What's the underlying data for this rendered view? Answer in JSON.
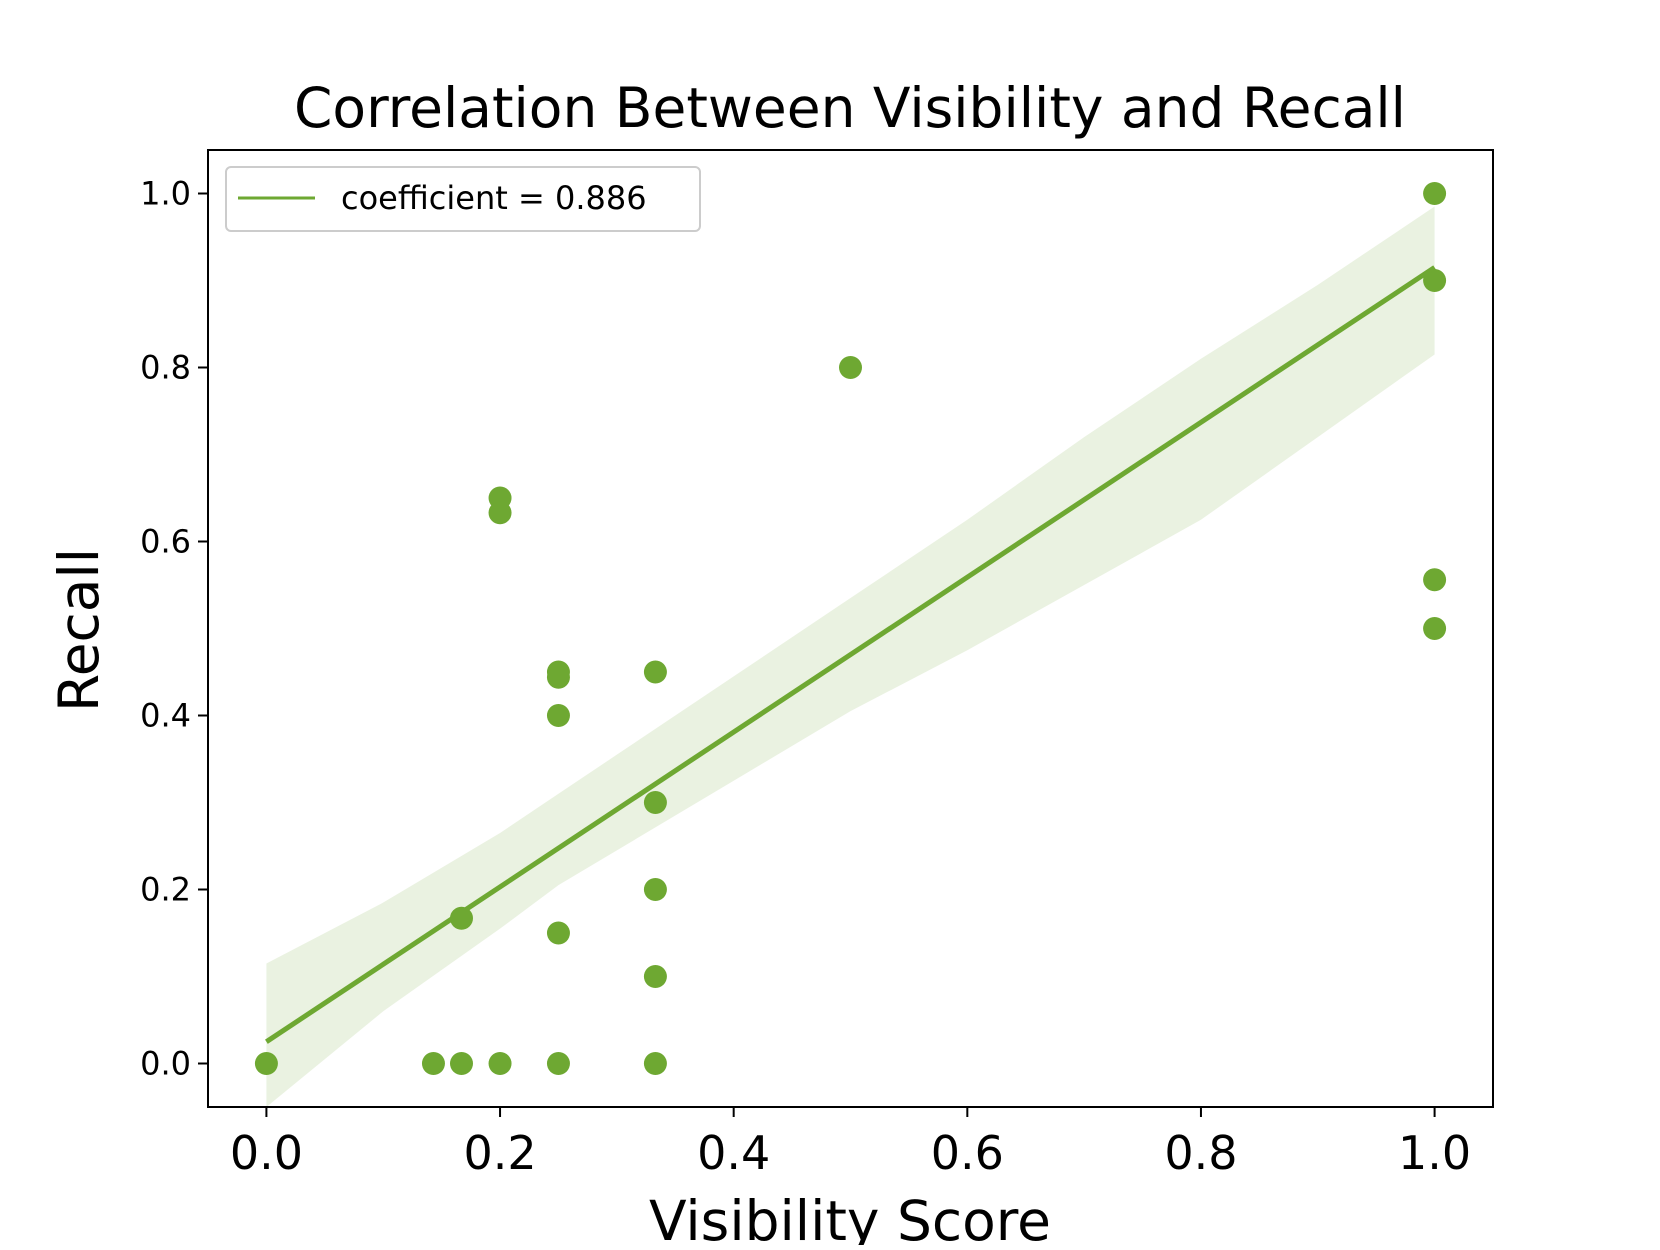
{
  "chart_data": {
    "type": "scatter",
    "title": "Correlation Between Visibility and Recall",
    "xlabel": "Visibility Score",
    "ylabel": "Recall",
    "xlim": [
      -0.05,
      1.05
    ],
    "ylim": [
      -0.05,
      1.05
    ],
    "xticks": [
      0.0,
      0.2,
      0.4,
      0.6,
      0.8,
      1.0
    ],
    "xtick_labels": [
      "0.0",
      "0.2",
      "0.4",
      "0.6",
      "0.8",
      "1.0"
    ],
    "yticks": [
      0.0,
      0.2,
      0.4,
      0.6,
      0.8,
      1.0
    ],
    "ytick_labels": [
      "0.0",
      "0.2",
      "0.4",
      "0.6",
      "0.8",
      "1.0"
    ],
    "grid": false,
    "legend": {
      "position": "top-left",
      "entries": [
        "coefficient = 0.886"
      ]
    },
    "colors": {
      "points": "#6ea832",
      "line": "#6ea832",
      "band": "#e6f0dc"
    },
    "series": [
      {
        "type": "scatter",
        "points": [
          {
            "x": 0.0,
            "y": 0.0
          },
          {
            "x": 0.143,
            "y": 0.0
          },
          {
            "x": 0.167,
            "y": 0.0
          },
          {
            "x": 0.167,
            "y": 0.167
          },
          {
            "x": 0.2,
            "y": 0.0
          },
          {
            "x": 0.2,
            "y": 0.633
          },
          {
            "x": 0.2,
            "y": 0.65
          },
          {
            "x": 0.25,
            "y": 0.0
          },
          {
            "x": 0.25,
            "y": 0.15
          },
          {
            "x": 0.25,
            "y": 0.4
          },
          {
            "x": 0.25,
            "y": 0.444
          },
          {
            "x": 0.25,
            "y": 0.45
          },
          {
            "x": 0.333,
            "y": 0.0
          },
          {
            "x": 0.333,
            "y": 0.1
          },
          {
            "x": 0.333,
            "y": 0.2
          },
          {
            "x": 0.333,
            "y": 0.3
          },
          {
            "x": 0.333,
            "y": 0.45
          },
          {
            "x": 0.5,
            "y": 0.8
          },
          {
            "x": 1.0,
            "y": 0.5
          },
          {
            "x": 1.0,
            "y": 0.556
          },
          {
            "x": 1.0,
            "y": 0.9
          },
          {
            "x": 1.0,
            "y": 1.0
          }
        ]
      },
      {
        "type": "line",
        "points": [
          {
            "x": 0.0,
            "y": 0.025
          },
          {
            "x": 1.0,
            "y": 0.915
          }
        ]
      },
      {
        "type": "band",
        "points": [
          {
            "x": 0.0,
            "lo": -0.05,
            "hi": 0.115
          },
          {
            "x": 0.1,
            "lo": 0.06,
            "hi": 0.185
          },
          {
            "x": 0.2,
            "lo": 0.155,
            "hi": 0.265
          },
          {
            "x": 0.25,
            "lo": 0.205,
            "hi": 0.31
          },
          {
            "x": 0.3,
            "lo": 0.245,
            "hi": 0.355
          },
          {
            "x": 0.4,
            "lo": 0.325,
            "hi": 0.445
          },
          {
            "x": 0.5,
            "lo": 0.405,
            "hi": 0.535
          },
          {
            "x": 0.6,
            "lo": 0.475,
            "hi": 0.625
          },
          {
            "x": 0.7,
            "lo": 0.55,
            "hi": 0.72
          },
          {
            "x": 0.8,
            "lo": 0.625,
            "hi": 0.81
          },
          {
            "x": 0.9,
            "lo": 0.72,
            "hi": 0.895
          },
          {
            "x": 1.0,
            "lo": 0.815,
            "hi": 0.985
          }
        ]
      }
    ]
  }
}
